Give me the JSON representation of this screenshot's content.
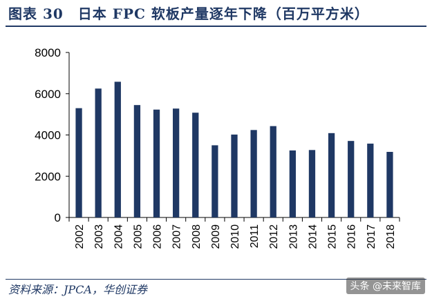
{
  "header": {
    "title": "图表 30　日本 FPC 软板产量逐年下降（百万平方米）"
  },
  "footer": {
    "source": "资料来源：JPCA，华创证券",
    "watermark": "头条 @未来智库"
  },
  "colors": {
    "bar": "#1f3864",
    "accent": "#1f3864",
    "axis": "#000000"
  },
  "chart_data": {
    "type": "bar",
    "title": "",
    "xlabel": "",
    "ylabel": "",
    "ylim": [
      0,
      8000
    ],
    "yticks": [
      0,
      2000,
      4000,
      6000,
      8000
    ],
    "grid": false,
    "categories": [
      "2002",
      "2003",
      "2004",
      "2005",
      "2006",
      "2007",
      "2008",
      "2009",
      "2010",
      "2011",
      "2012",
      "2013",
      "2014",
      "2015",
      "2016",
      "2017",
      "2018"
    ],
    "values": [
      5300,
      6250,
      6580,
      5450,
      5230,
      5280,
      5080,
      3500,
      4020,
      4240,
      4430,
      3250,
      3270,
      4090,
      3710,
      3580,
      3180
    ]
  }
}
